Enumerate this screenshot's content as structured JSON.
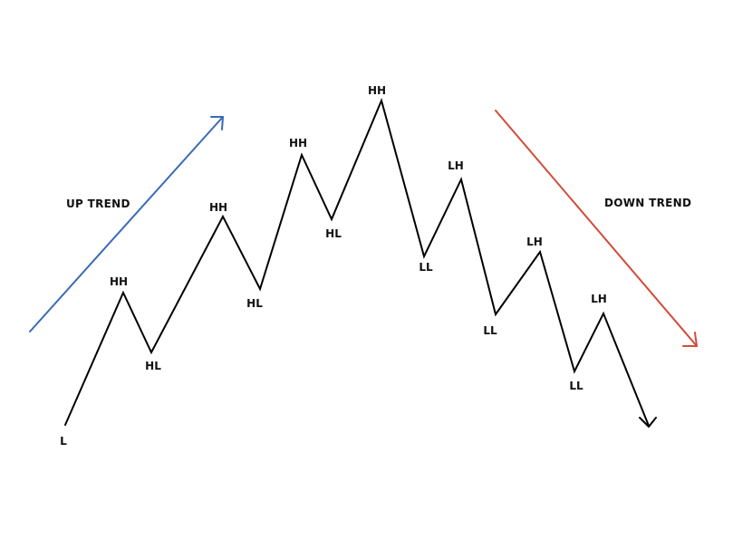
{
  "diagram": {
    "trends": {
      "up": {
        "label": "UP TREND",
        "color": "#3a6ab5"
      },
      "down": {
        "label": "DOWN TREND",
        "color": "#d24b3a"
      }
    },
    "price_line_color": "#000000",
    "points": [
      {
        "label": "L"
      },
      {
        "label": "HH"
      },
      {
        "label": "HL"
      },
      {
        "label": "HH"
      },
      {
        "label": "HL"
      },
      {
        "label": "HH"
      },
      {
        "label": "HL"
      },
      {
        "label": "HH"
      },
      {
        "label": "LL"
      },
      {
        "label": "LH"
      },
      {
        "label": "LL"
      },
      {
        "label": "LH"
      },
      {
        "label": "LL"
      },
      {
        "label": "LH"
      }
    ]
  }
}
